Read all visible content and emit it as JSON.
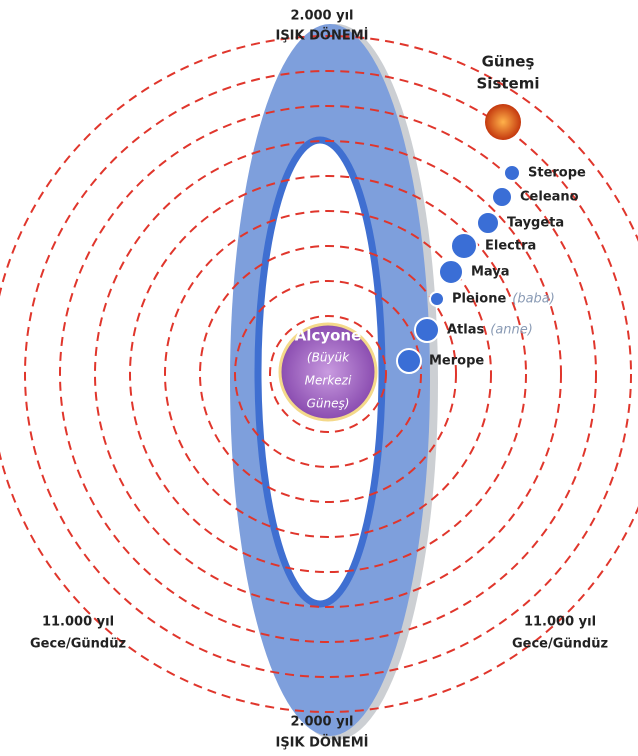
{
  "top_label": {
    "years": "2.000 yıl",
    "period": "IŞIK DÖNEMİ"
  },
  "bottom_label": {
    "years": "2.000 yıl",
    "period": "IŞIK DÖNEMİ"
  },
  "left_label": {
    "years": "11.000 yıl",
    "period": "Gece/Gündüz"
  },
  "right_label": {
    "years": "11.000 yıl",
    "period": "Gece/Gündüz"
  },
  "sun": {
    "line1": "Güneş",
    "line2": "Sistemi"
  },
  "center": {
    "name": "Alcyone",
    "lines": [
      "(Büyük",
      "Merkezi",
      "Güneş)"
    ]
  },
  "stars": [
    {
      "name": "Sterope"
    },
    {
      "name": "Celeano"
    },
    {
      "name": "Taygeta"
    },
    {
      "name": "Electra"
    },
    {
      "name": "Maya"
    },
    {
      "name": "Pleione",
      "note": "(baba)"
    },
    {
      "name": "Atlas",
      "note": "(anne)"
    },
    {
      "name": "Merope"
    }
  ]
}
